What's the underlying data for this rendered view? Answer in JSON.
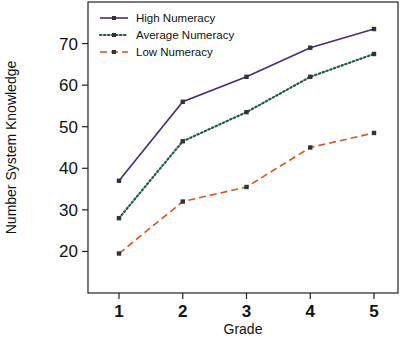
{
  "chart_data": {
    "type": "line",
    "x_label": "Grade",
    "y_label": "Number System Knowledge",
    "categories": [
      "1",
      "2",
      "3",
      "4",
      "5"
    ],
    "series": [
      {
        "name": "High Numeracy",
        "color": "#4b2a7a",
        "line_style": "solid",
        "marker": "square",
        "values": [
          37,
          56,
          62,
          69,
          73.5
        ]
      },
      {
        "name": "Average Numeracy",
        "color": "#1d5c4c",
        "line_style": "dotted",
        "marker": "square",
        "values": [
          28,
          46.5,
          53.5,
          62,
          67.5
        ]
      },
      {
        "name": "Low Numeracy",
        "color": "#d9541e",
        "line_style": "dashed",
        "marker": "square",
        "values": [
          19.5,
          32,
          35.5,
          45,
          48.5
        ]
      }
    ],
    "ylim": [
      10,
      80
    ],
    "yticks": [
      20,
      30,
      40,
      50,
      60,
      70
    ],
    "grid": false,
    "legend": "top-left"
  }
}
